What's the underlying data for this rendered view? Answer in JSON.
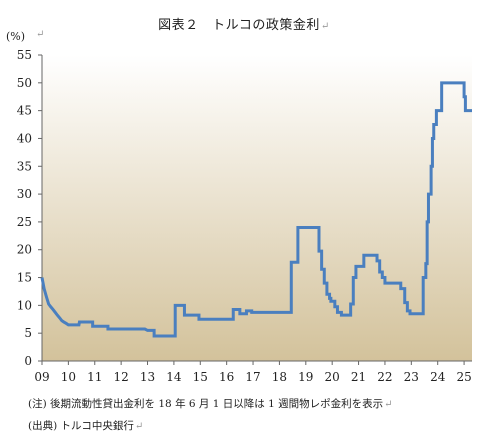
{
  "title": "図表２　トルコの政策金利",
  "unit_label": "(%)",
  "edit_mark": "↵",
  "note": "(注) 後期流動性貸出金利を 18 年 6 月 1 日以降は 1 週間物レポ金利を表示",
  "source": "(出典) トルコ中央銀行",
  "chart_data": {
    "type": "line",
    "title": "図表２　トルコの政策金利",
    "ylabel": "(%)",
    "xlabel": "",
    "ylim": [
      0,
      55
    ],
    "xlim": [
      2009.0,
      2025.3
    ],
    "grid": false,
    "legend": "none",
    "y_ticks": [
      0,
      5,
      10,
      15,
      20,
      25,
      30,
      35,
      40,
      45,
      50,
      55
    ],
    "x_ticks": [
      {
        "label": "09",
        "value": 2009
      },
      {
        "label": "10",
        "value": 2010
      },
      {
        "label": "11",
        "value": 2011
      },
      {
        "label": "12",
        "value": 2012
      },
      {
        "label": "13",
        "value": 2013
      },
      {
        "label": "14",
        "value": 2014
      },
      {
        "label": "15",
        "value": 2015
      },
      {
        "label": "16",
        "value": 2016
      },
      {
        "label": "17",
        "value": 2017
      },
      {
        "label": "18",
        "value": 2018
      },
      {
        "label": "19",
        "value": 2019
      },
      {
        "label": "20",
        "value": 2020
      },
      {
        "label": "21",
        "value": 2021
      },
      {
        "label": "22",
        "value": 2022
      },
      {
        "label": "23",
        "value": 2023
      },
      {
        "label": "24",
        "value": 2024
      },
      {
        "label": "25",
        "value": 2025
      }
    ],
    "colors": {
      "line": "#4a7fbf",
      "plot_bg_top": "#ffffff",
      "plot_bg_bottom": "#d3c29b",
      "axis": "#666666"
    },
    "series": [
      {
        "x": [
          2009.0,
          2009.08,
          2009.17,
          2009.25,
          2009.33,
          2009.42,
          2009.5,
          2009.58,
          2009.67,
          2009.75,
          2009.83,
          2009.92,
          2010.0,
          2010.4,
          2010.42,
          2010.92,
          2010.92,
          2011.5,
          2011.5,
          2012.9,
          2013.0,
          2013.25,
          2013.25,
          2014.05,
          2014.05,
          2014.4,
          2014.4,
          2014.95,
          2014.95,
          2016.25,
          2016.25,
          2016.5,
          2016.5,
          2016.75,
          2016.75,
          2016.95,
          2016.95,
          2018.45,
          2018.45,
          2018.55,
          2018.55,
          2018.7,
          2018.7,
          2019.5,
          2019.5,
          2019.6,
          2019.6,
          2019.7,
          2019.7,
          2019.8,
          2019.8,
          2019.9,
          2019.9,
          2019.95,
          2019.95,
          2020.1,
          2020.1,
          2020.2,
          2020.2,
          2020.35,
          2020.35,
          2020.7,
          2020.7,
          2020.8,
          2020.8,
          2020.9,
          2020.9,
          2021.2,
          2021.2,
          2021.7,
          2021.7,
          2021.8,
          2021.8,
          2021.9,
          2021.9,
          2022.0,
          2022.0,
          2022.6,
          2022.6,
          2022.75,
          2022.75,
          2022.85,
          2022.85,
          2022.95,
          2022.95,
          2023.0,
          2023.0,
          2023.45,
          2023.45,
          2023.55,
          2023.55,
          2023.6,
          2023.6,
          2023.65,
          2023.65,
          2023.75,
          2023.75,
          2023.8,
          2023.8,
          2023.85,
          2023.85,
          2023.95,
          2023.95,
          2024.15,
          2024.15,
          2024.25,
          2024.25,
          2025.0,
          2025.0,
          2025.05,
          2025.05,
          2025.3,
          2025.3
        ],
        "y": [
          15.0,
          13.0,
          11.5,
          10.25,
          9.75,
          9.25,
          8.75,
          8.25,
          7.75,
          7.25,
          7.0,
          6.75,
          6.5,
          6.5,
          7.0,
          7.0,
          6.25,
          6.25,
          5.75,
          5.75,
          5.5,
          5.5,
          4.5,
          4.5,
          10.0,
          10.0,
          8.25,
          8.25,
          7.5,
          7.5,
          9.25,
          9.25,
          8.5,
          8.5,
          9.0,
          9.0,
          8.75,
          8.75,
          17.75,
          17.75,
          17.75,
          17.75,
          24.0,
          24.0,
          19.75,
          19.75,
          16.5,
          16.5,
          14.0,
          14.0,
          12.0,
          12.0,
          11.25,
          11.25,
          10.75,
          10.75,
          9.75,
          9.75,
          8.75,
          8.75,
          8.25,
          8.25,
          10.25,
          10.25,
          15.0,
          15.0,
          17.0,
          17.0,
          19.0,
          19.0,
          18.0,
          18.0,
          16.0,
          16.0,
          15.0,
          15.0,
          14.0,
          14.0,
          13.0,
          13.0,
          10.5,
          10.5,
          9.0,
          9.0,
          8.5,
          8.5,
          8.5,
          8.5,
          15.0,
          15.0,
          17.5,
          17.5,
          25.0,
          25.0,
          30.0,
          30.0,
          35.0,
          35.0,
          40.0,
          40.0,
          42.5,
          42.5,
          45.0,
          45.0,
          50.0,
          50.0,
          50.0,
          50.0,
          47.5,
          47.5,
          45.0,
          45.0,
          45.0
        ]
      }
    ]
  }
}
